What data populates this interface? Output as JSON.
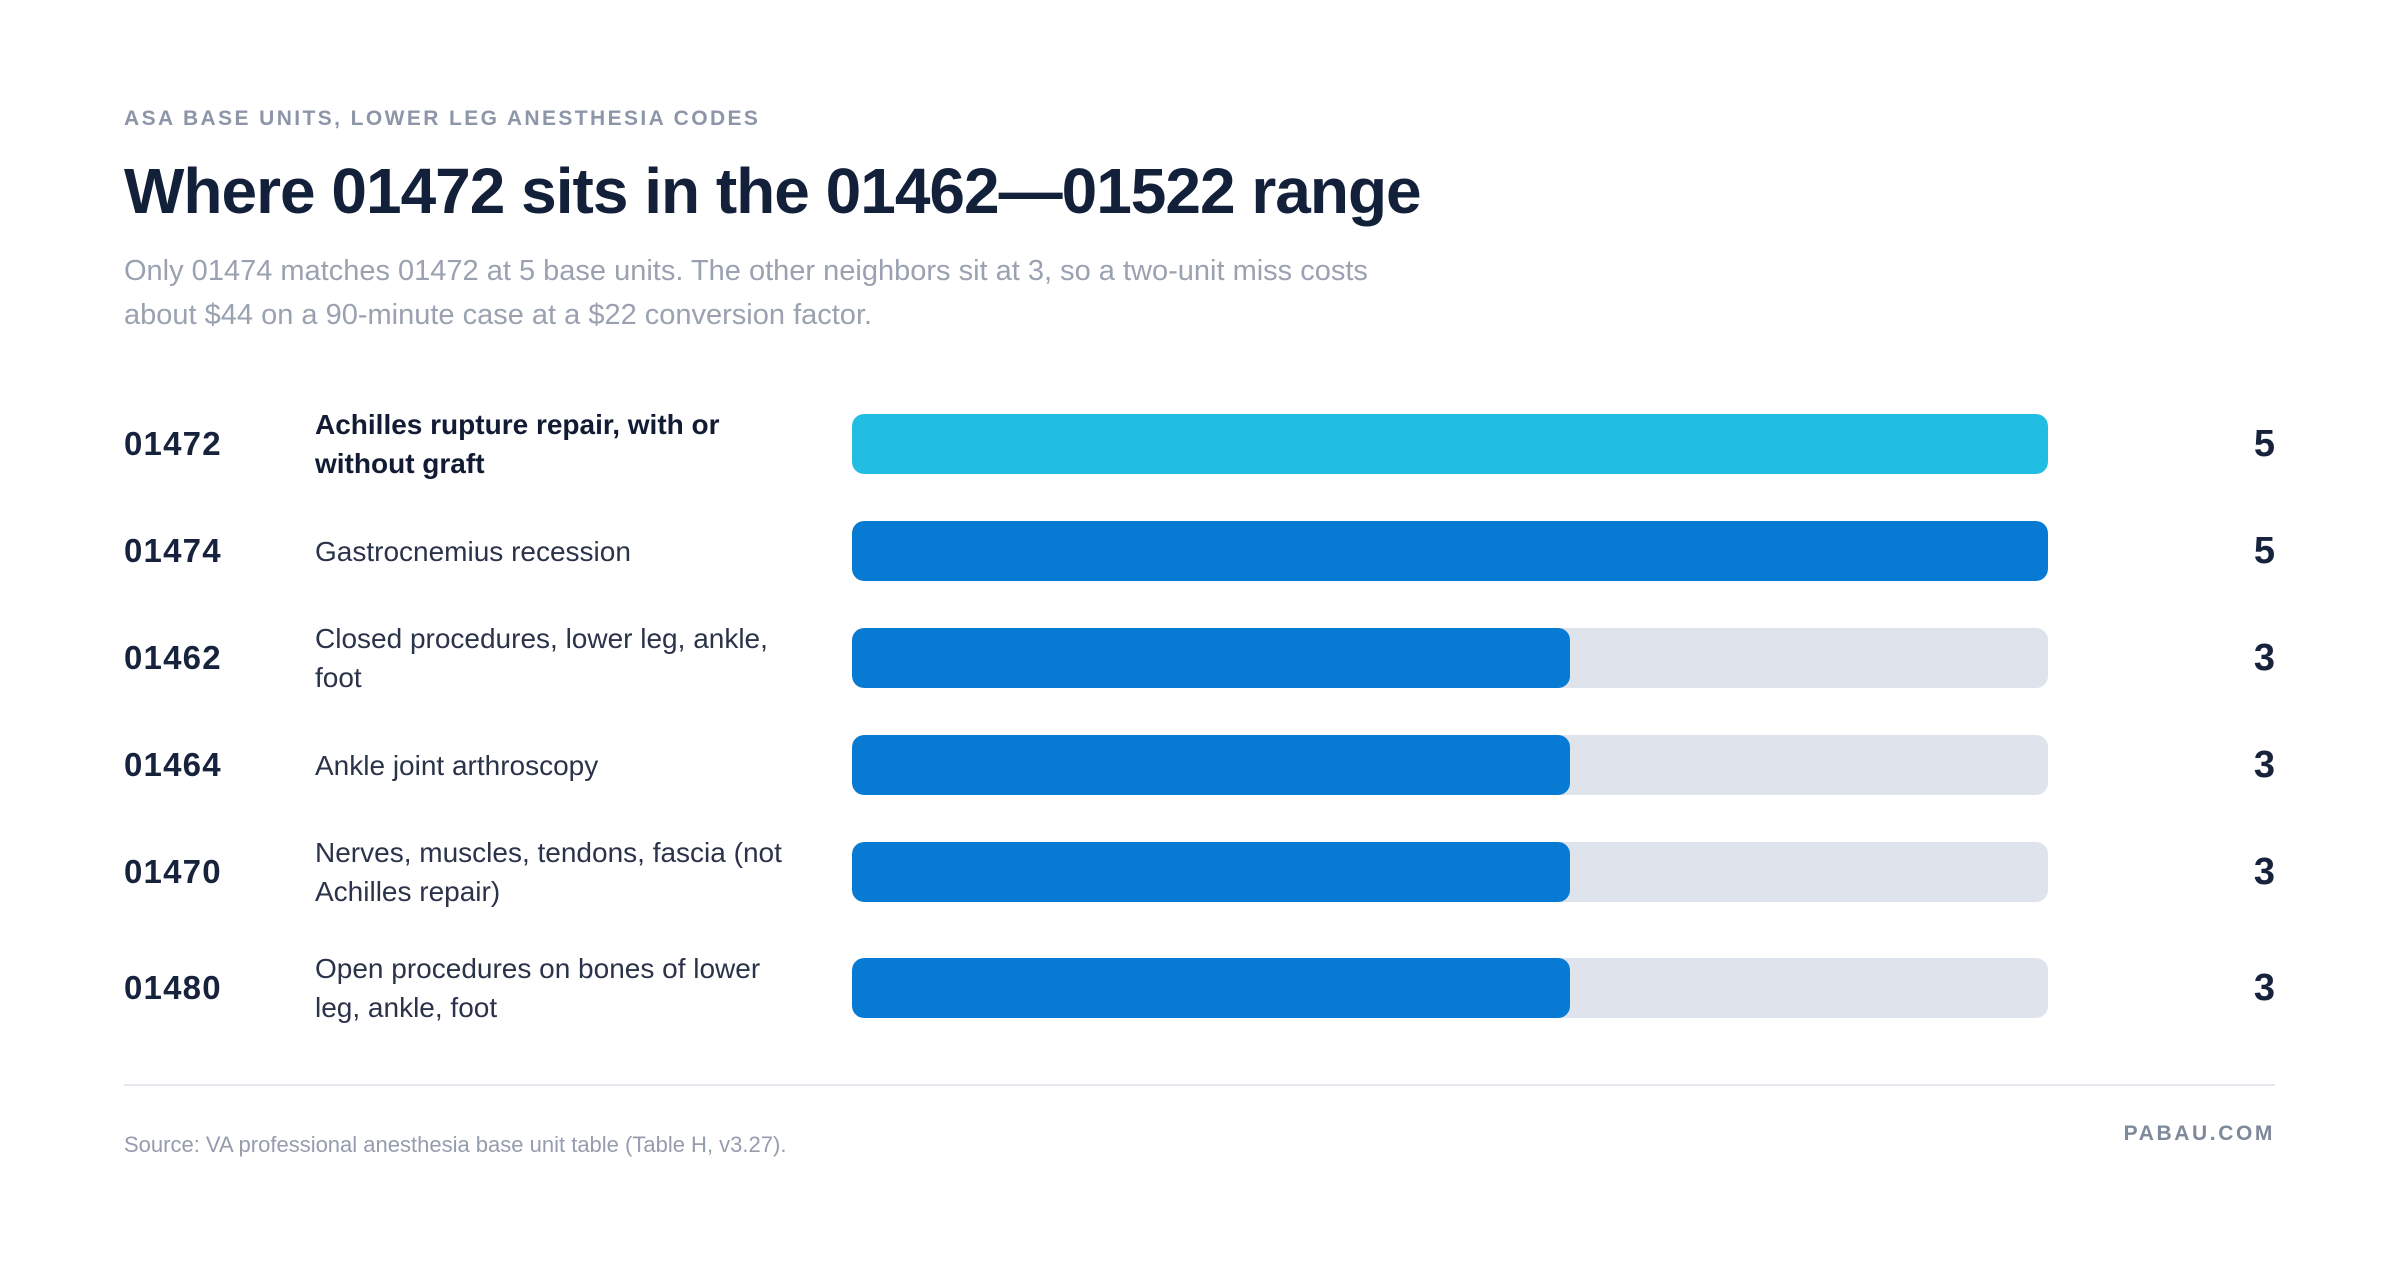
{
  "chart_data": {
    "type": "bar",
    "orientation": "horizontal",
    "eyebrow": "ASA BASE UNITS, LOWER LEG ANESTHESIA CODES",
    "title": "Where 01472 sits in the 01462—01522 range",
    "subtitle": "Only 01474 matches 01472 at 5 base units. The other neighbors sit at 3, so a two-unit miss costs about $44 on a 90-minute case at a $22 conversion factor.",
    "categories": [
      "01472",
      "01474",
      "01462",
      "01464",
      "01470",
      "01480"
    ],
    "descriptions": [
      "Achilles rupture repair, with or without graft",
      "Gastrocnemius recession",
      "Closed procedures, lower leg, ankle, foot",
      "Ankle joint arthroscopy",
      "Nerves, muscles, tendons, fascia (not Achilles repair)",
      "Open procedures on bones of lower leg, ankle, foot"
    ],
    "values": [
      5,
      5,
      3,
      3,
      3,
      3
    ],
    "xlim": [
      0,
      5
    ],
    "grid": false,
    "highlight_index": 0,
    "colors": {
      "highlight": "#22BDE3",
      "bar": "#077BD4",
      "track": "#DFE3EC"
    }
  },
  "footer": {
    "source": "Source: VA professional anesthesia base unit table (Table H, v3.27).",
    "brand": "PABAU.COM"
  }
}
